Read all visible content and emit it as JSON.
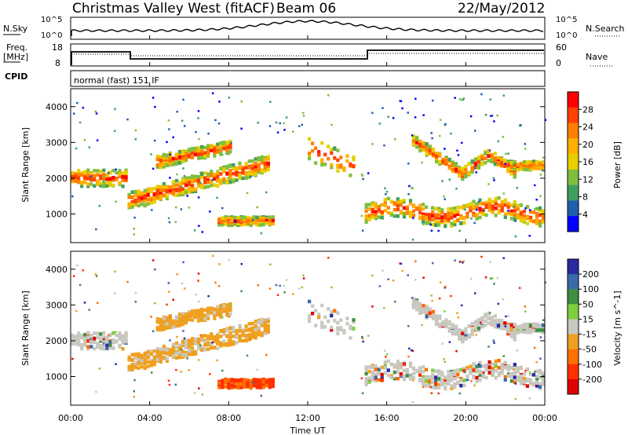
{
  "header": {
    "title": "Christmas Valley West (fitACF)",
    "beam": "Beam 06",
    "date": "22/May/2012"
  },
  "params": {
    "nsky_label": "N.Sky",
    "nsearch_label": "N.Search",
    "nsky_ticks": [
      "10^5",
      "10^0"
    ],
    "nsearch_ticks": [
      "10^5",
      "10^0"
    ],
    "freq_label": "Freq.",
    "freq_unit": "[MHz]",
    "freq_ticks": [
      "18",
      "8"
    ],
    "nave_label": "Nave",
    "nave_ticks": [
      "60",
      "0"
    ],
    "cpid_label": "CPID",
    "cpid_text": "normal (fast) 151 IF"
  },
  "chart_data": [
    {
      "type": "heatmap",
      "name": "power",
      "ylabel": "Slant Range [km]",
      "xlabel": "Time UT",
      "x_ticks": [
        "00:00",
        "04:00",
        "08:00",
        "12:00",
        "16:00",
        "20:00",
        "00:00"
      ],
      "y_ticks": [
        1000,
        2000,
        3000,
        4000
      ],
      "ylim": [
        200,
        4500
      ],
      "colorbar": {
        "label": "Power [dB]",
        "ticks": [
          "28",
          "24",
          "20",
          "16",
          "12",
          "8",
          "4"
        ],
        "colors": [
          "#ff0000",
          "#ff4000",
          "#ff7f00",
          "#ffb000",
          "#e6d000",
          "#7fbf3f",
          "#3f9f5f",
          "#1f5faf",
          "#0000ff"
        ]
      }
    },
    {
      "type": "heatmap",
      "name": "velocity",
      "ylabel": "Slant Range [km]",
      "xlabel": "Time UT",
      "x_ticks": [
        "00:00",
        "04:00",
        "08:00",
        "12:00",
        "16:00",
        "20:00",
        "00:00"
      ],
      "y_ticks": [
        1000,
        2000,
        3000,
        4000
      ],
      "ylim": [
        200,
        4500
      ],
      "colorbar": {
        "label": "Velocity [m s^-1]",
        "ticks": [
          "200",
          "100",
          "50",
          "15",
          "-15",
          "-50",
          "-100",
          "-200"
        ],
        "colors": [
          "#2a2aa0",
          "#3a6aa8",
          "#3f8f3f",
          "#7fcf3f",
          "#c8c8c0",
          "#f0a020",
          "#ff7000",
          "#ff3000",
          "#e00000"
        ]
      }
    }
  ],
  "footer": {
    "xlabel": "Time UT"
  }
}
